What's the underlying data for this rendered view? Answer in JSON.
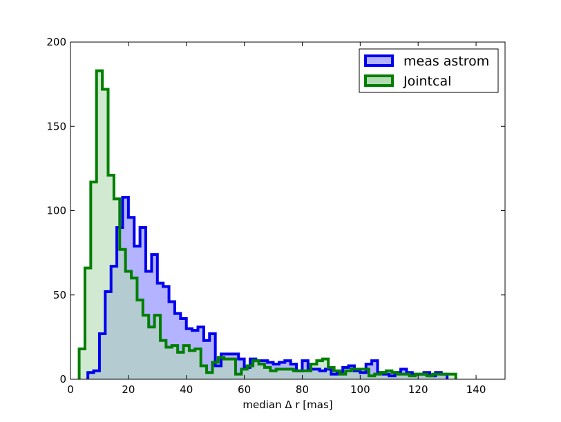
{
  "chart_data": {
    "type": "histogram",
    "title": "",
    "xlabel": "median Δ r [mas]",
    "ylabel": "",
    "xlim": [
      0,
      150
    ],
    "ylim": [
      0,
      200
    ],
    "xticks": [
      0,
      20,
      40,
      60,
      80,
      100,
      120,
      140
    ],
    "yticks": [
      0,
      50,
      100,
      150,
      200
    ],
    "grid": false,
    "legend_position": "top-right",
    "bin_width": 2,
    "series": [
      {
        "name": "meas astrom",
        "edge_color": "#0000ee",
        "fill_color": "#b3b3ff",
        "bin_start": 6,
        "counts": [
          4,
          5,
          27,
          52,
          67,
          90,
          108,
          96,
          79,
          90,
          64,
          74,
          57,
          55,
          46,
          39,
          36,
          30,
          29,
          31,
          23,
          27,
          8,
          15,
          15,
          15,
          12,
          7,
          12,
          11,
          11,
          10,
          9,
          10,
          11,
          9,
          5,
          11,
          6,
          6,
          5,
          6,
          3,
          4,
          7,
          8,
          5,
          4,
          9,
          11,
          4,
          3,
          2,
          4,
          6,
          4,
          3,
          3,
          4,
          2,
          4,
          3
        ]
      },
      {
        "name": "Jointcal",
        "edge_color": "#007f00",
        "fill_color": "#b3dbb3",
        "bin_start": 3,
        "counts": [
          18,
          66,
          117,
          183,
          172,
          121,
          107,
          77,
          64,
          60,
          47,
          38,
          31,
          38,
          23,
          19,
          20,
          16,
          20,
          17,
          18,
          8,
          4,
          10,
          13,
          12,
          12,
          3,
          6,
          8,
          11,
          9,
          7,
          5,
          6,
          6,
          6,
          5,
          5,
          5,
          9,
          11,
          12,
          7,
          5,
          3,
          5,
          6,
          6,
          6,
          2,
          3,
          4,
          5,
          4,
          3,
          3,
          2,
          3,
          3,
          2,
          3,
          3,
          3,
          3
        ]
      }
    ]
  }
}
